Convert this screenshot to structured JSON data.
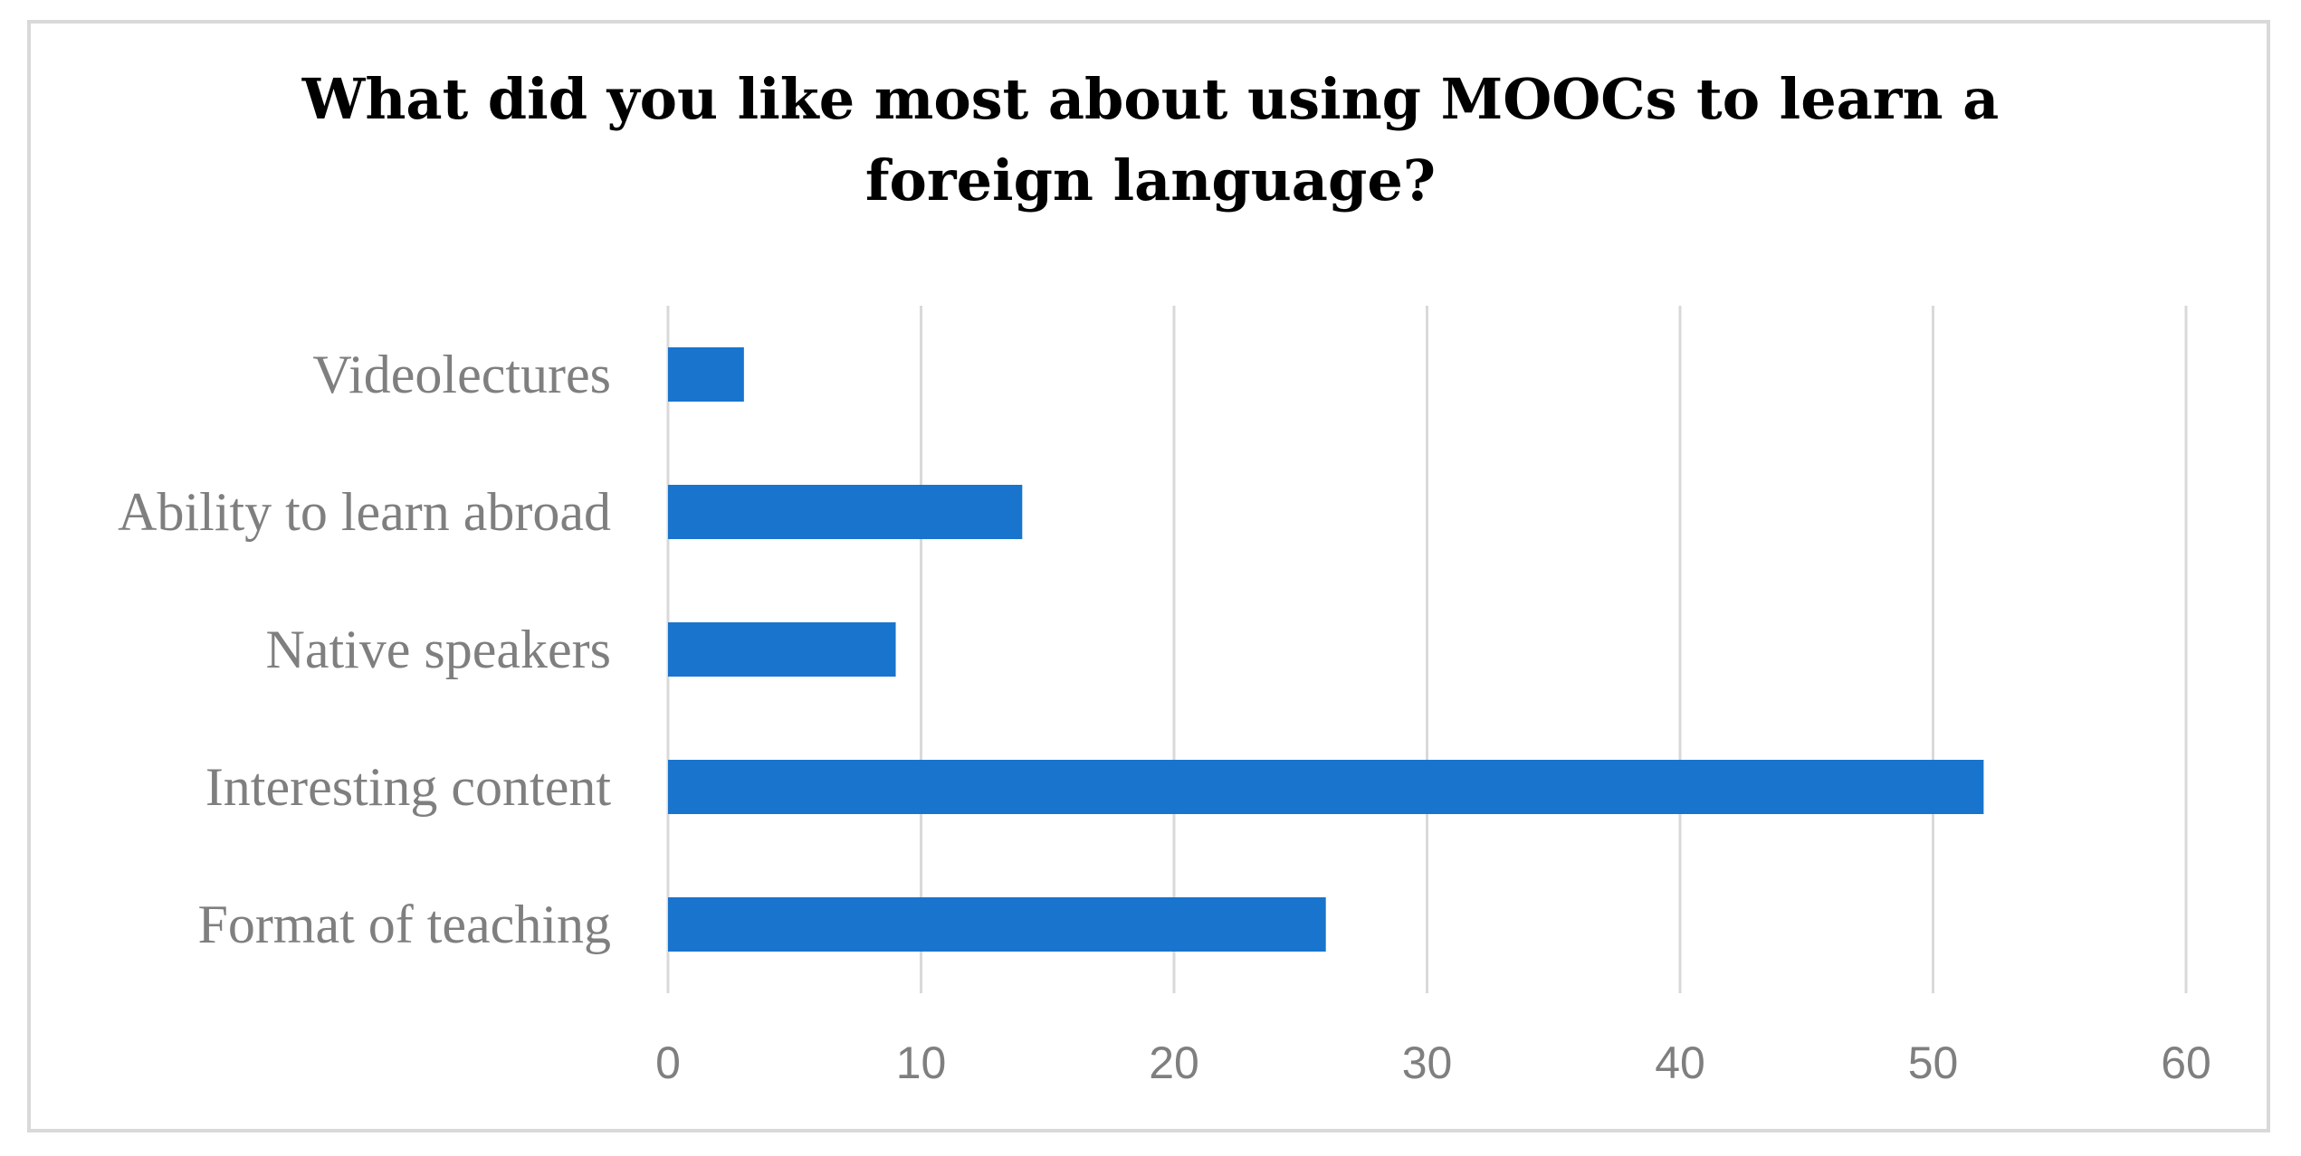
{
  "chart_data": {
    "type": "bar",
    "orientation": "horizontal",
    "title": "What did you like most about using MOOCs to learn a foreign language?",
    "categories": [
      "Videolectures",
      "Ability to learn abroad",
      "Native speakers",
      "Interesting content",
      "Format of teaching"
    ],
    "values": [
      3,
      14,
      9,
      52,
      26
    ],
    "xlim": [
      0,
      60
    ],
    "xticks": [
      "0",
      "10",
      "20",
      "30",
      "40",
      "50",
      "60"
    ],
    "grid": true,
    "legend": "none",
    "bar_color": "#1874CD"
  }
}
